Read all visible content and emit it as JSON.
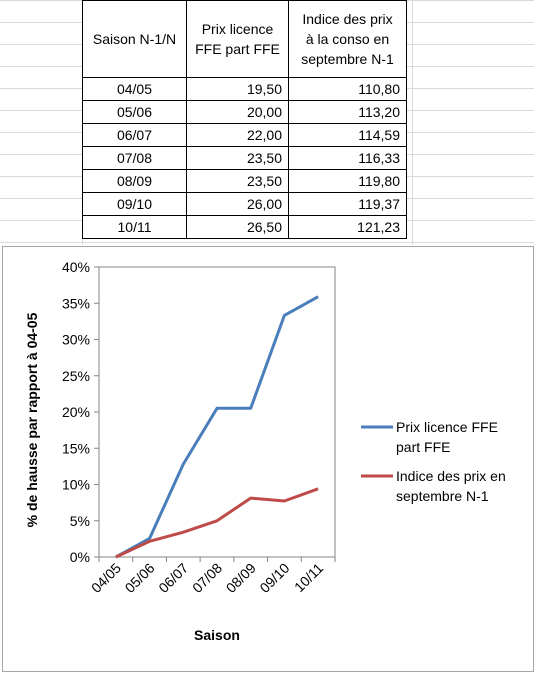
{
  "table": {
    "headers": [
      "Saison N-1/N",
      "Prix licence FFE part FFE",
      "Indice des prix à la conso en septembre N-1"
    ],
    "header_lines": [
      [
        "Saison N-1/N"
      ],
      [
        "Prix licence",
        "FFE part FFE"
      ],
      [
        "Indice des prix",
        "à la conso en",
        "septembre N-1"
      ]
    ],
    "rows": [
      [
        "04/05",
        "19,50",
        "110,80"
      ],
      [
        "05/06",
        "20,00",
        "113,20"
      ],
      [
        "06/07",
        "22,00",
        "114,59"
      ],
      [
        "07/08",
        "23,50",
        "116,33"
      ],
      [
        "08/09",
        "23,50",
        "119,80"
      ],
      [
        "09/10",
        "26,00",
        "119,37"
      ],
      [
        "10/11",
        "26,50",
        "121,23"
      ]
    ]
  },
  "chart_data": {
    "type": "line",
    "categories": [
      "04/05",
      "05/06",
      "06/07",
      "07/08",
      "08/09",
      "09/10",
      "10/11"
    ],
    "series": [
      {
        "name": "Prix licence FFE part FFE",
        "legend_lines": [
          "Prix licence FFE",
          "part FFE"
        ],
        "color": "#4a7ebb",
        "values": [
          0,
          2.56,
          12.82,
          20.51,
          20.51,
          33.33,
          35.9
        ]
      },
      {
        "name": "Indice des prix en septembre N-1",
        "legend_lines": [
          "Indice des prix en",
          "septembre N-1"
        ],
        "color": "#be4b48",
        "values": [
          0,
          2.17,
          3.42,
          4.99,
          8.12,
          7.73,
          9.41
        ]
      }
    ],
    "yticks": [
      "0%",
      "5%",
      "10%",
      "15%",
      "20%",
      "25%",
      "30%",
      "35%",
      "40%"
    ],
    "ylim": [
      0,
      40
    ],
    "xlabel": "Saison",
    "ylabel": "% de hausse par rapport à 04-05",
    "legend": "right"
  }
}
